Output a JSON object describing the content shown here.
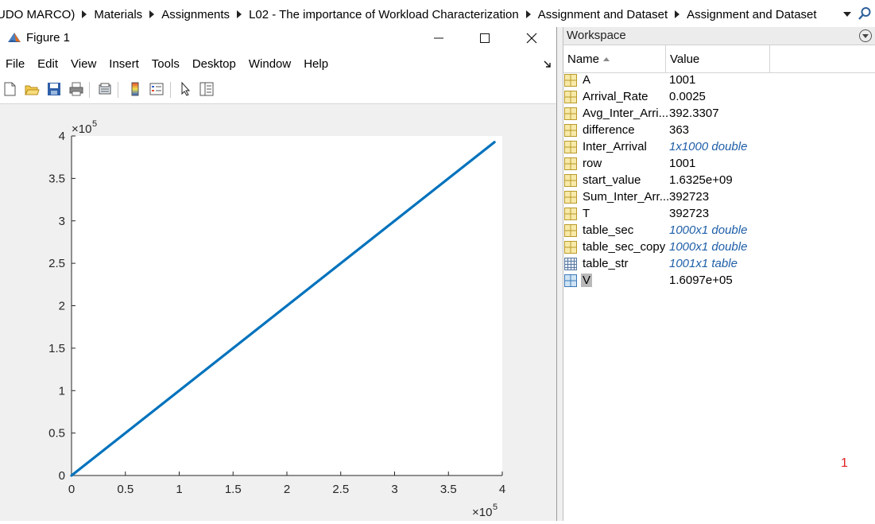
{
  "breadcrumb": [
    "UDO MARCO)",
    "Materials",
    "Assignments",
    "L02 - The importance of Workload Characterization",
    "Assignment and Dataset",
    "Assignment and Dataset"
  ],
  "figure": {
    "title": "Figure 1",
    "menus": [
      "File",
      "Edit",
      "View",
      "Insert",
      "Tools",
      "Desktop",
      "Window",
      "Help"
    ],
    "toolbar_icons": [
      "new-figure-icon",
      "open-icon",
      "save-icon",
      "print-icon",
      "link-plot-icon",
      "colorbar-icon",
      "legend-icon",
      "edit-plot-arrow-icon",
      "property-inspector-icon"
    ]
  },
  "chart_data": {
    "type": "scatter",
    "x_exponent_label": "×10",
    "x_exponent_power": "5",
    "y_exponent_label": "×10",
    "y_exponent_power": "5",
    "xlim": [
      0,
      400000
    ],
    "ylim": [
      0,
      400000
    ],
    "xticks": [
      "0",
      "0.5",
      "1",
      "1.5",
      "2",
      "2.5",
      "3",
      "3.5",
      "4"
    ],
    "yticks": [
      "0",
      "0.5",
      "1",
      "1.5",
      "2",
      "2.5",
      "3",
      "3.5",
      "4"
    ],
    "series": [
      {
        "color": "#0072BD",
        "x_start": 0,
        "x_end": 392723,
        "y_start": 0,
        "y_end": 392723,
        "n_points": 1000
      }
    ],
    "grid": false,
    "legend": false
  },
  "workspace": {
    "title": "Workspace",
    "columns": {
      "name": "Name",
      "value": "Value"
    },
    "variables": [
      {
        "name": "A",
        "value": "1001",
        "icon": "numeric-array-icon",
        "italic": false
      },
      {
        "name": "Arrival_Rate",
        "value": "0.0025",
        "icon": "numeric-array-icon",
        "italic": false
      },
      {
        "name": "Avg_Inter_Arri...",
        "value": "392.3307",
        "icon": "numeric-array-icon",
        "italic": false
      },
      {
        "name": "difference",
        "value": "363",
        "icon": "numeric-array-icon",
        "italic": false
      },
      {
        "name": "Inter_Arrival",
        "value": "1x1000 double",
        "icon": "numeric-array-icon",
        "italic": true
      },
      {
        "name": "row",
        "value": "1001",
        "icon": "numeric-array-icon",
        "italic": false
      },
      {
        "name": "start_value",
        "value": "1.6325e+09",
        "icon": "numeric-array-icon",
        "italic": false
      },
      {
        "name": "Sum_Inter_Arr...",
        "value": "392723",
        "icon": "numeric-array-icon",
        "italic": false
      },
      {
        "name": "T",
        "value": "392723",
        "icon": "numeric-array-icon",
        "italic": false
      },
      {
        "name": "table_sec",
        "value": "1000x1 double",
        "icon": "numeric-array-icon",
        "italic": true
      },
      {
        "name": "table_sec_copy",
        "value": "1000x1 double",
        "icon": "numeric-array-icon",
        "italic": true
      },
      {
        "name": "table_str",
        "value": "1001x1 table",
        "icon": "table-icon",
        "italic": true
      },
      {
        "name": "V",
        "value": "1.6097e+05",
        "icon": "numeric-array-icon-selected",
        "italic": false,
        "selected": true
      }
    ]
  },
  "stray_marker": "1"
}
